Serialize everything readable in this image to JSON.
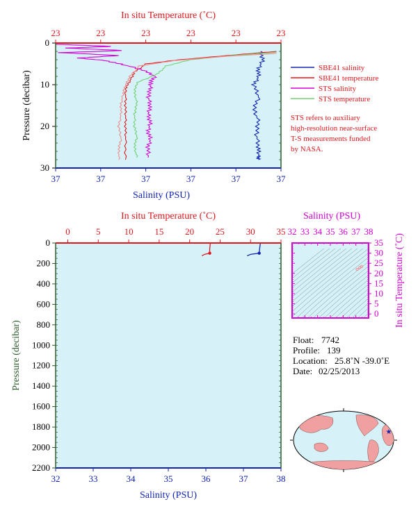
{
  "colors": {
    "red": "#e0161b",
    "blue": "#1023b0",
    "magenta": "#d400d4",
    "green": "#70d070",
    "pink": "#f08a8a",
    "plot_bg": "#d6f2f8",
    "axis_left": "#2a5a2a",
    "note": "#e0161b"
  },
  "chart_data": [
    {
      "type": "line",
      "id": "upper-profile",
      "title": "In situ Temperature (˚C)",
      "xlabel": "Salinity (PSU)",
      "ylabel": "Pressure (decibar)",
      "top_tick_labels": [
        "23",
        "23",
        "23",
        "23",
        "23",
        "23"
      ],
      "bottom_tick_labels": [
        "37",
        "37",
        "37",
        "37",
        "37",
        "37"
      ],
      "y_ticks": [
        "0",
        "10",
        "20",
        "30"
      ],
      "ylim": [
        0,
        30
      ],
      "y_inverted": true,
      "series": [
        {
          "name": "SBE41 salinity",
          "axis": "bottom",
          "color": "blue",
          "x": [
            0.91,
            0.92,
            0.9,
            0.9,
            0.88,
            0.9,
            0.88,
            0.9,
            0.89,
            0.9,
            0.9,
            0.9
          ],
          "y": [
            2,
            4,
            6,
            8,
            10,
            13,
            16,
            19,
            22,
            25,
            27,
            28
          ]
        },
        {
          "name": "SBE41 temperature",
          "axis": "top",
          "color": "red",
          "x": [
            0.98,
            0.76,
            0.55,
            0.4,
            0.35,
            0.33,
            0.31,
            0.31,
            0.31,
            0.31,
            0.31,
            0.31
          ],
          "y": [
            2,
            3,
            4,
            5,
            7,
            9,
            11,
            14,
            17,
            20,
            23,
            28
          ]
        },
        {
          "name": "STS salinity",
          "axis": "bottom",
          "color": "magenta",
          "x": [
            0.0,
            0.25,
            0.05,
            0.3,
            0.02,
            0.28,
            0.1,
            0.22,
            0.3,
            0.39,
            0.44,
            0.42,
            0.42,
            0.41,
            0.42,
            0.41,
            0.42,
            0.41,
            0.42,
            0.41,
            0.41
          ],
          "y": [
            0.3,
            0.8,
            1.2,
            1.8,
            2.3,
            3.0,
            3.6,
            4.2,
            5.2,
            6.5,
            8.0,
            9.5,
            11,
            13,
            15,
            17,
            19,
            21,
            23,
            25,
            27.5
          ]
        },
        {
          "name": "STS temperature",
          "axis": "top",
          "color": "green",
          "x": [
            0.98,
            0.78,
            0.6,
            0.49,
            0.45,
            0.36,
            0.35,
            0.36,
            0.35,
            0.35,
            0.36,
            0.35,
            0.36
          ],
          "y": [
            2.2,
            3,
            4,
            5.5,
            7.5,
            9.5,
            12,
            14.5,
            17,
            20,
            22.5,
            25,
            27.5
          ]
        },
        {
          "name": "",
          "axis": "top",
          "color": "pink",
          "x": [
            0.98,
            0.75,
            0.53,
            0.37,
            0.33,
            0.31,
            0.3,
            0.29,
            0.29,
            0.28,
            0.29,
            0.28,
            0.28
          ],
          "y": [
            2.5,
            3.2,
            4.2,
            5.5,
            8,
            10,
            12,
            14.5,
            17,
            20,
            23,
            25.5,
            28
          ]
        }
      ],
      "legend": [
        "SBE41 salinity",
        "SBE41 temperature",
        "STS salinity",
        "STS temperature"
      ],
      "legend_placement": "right"
    },
    {
      "type": "line",
      "id": "lower-profile",
      "title": "In situ Temperature (˚C)",
      "xlabel": "Salinity (PSU)",
      "ylabel": "Pressure (decibar)",
      "top_ticks": [
        0,
        5,
        10,
        15,
        20,
        25,
        30,
        35
      ],
      "bottom_ticks": [
        32,
        33,
        34,
        35,
        36,
        37,
        38
      ],
      "y_ticks": [
        0,
        200,
        400,
        600,
        800,
        1000,
        1200,
        1400,
        1600,
        1800,
        2000,
        2200
      ],
      "xlim_temperature": [
        -2,
        35
      ],
      "xlim_salinity": [
        32,
        38
      ],
      "ylim": [
        0,
        2200
      ],
      "y_inverted": true,
      "series": [
        {
          "name": "temperature",
          "axis": "top",
          "color": "red",
          "x": [
            23.4,
            23.3,
            23.3,
            22.5,
            22.0
          ],
          "y": [
            5,
            60,
            100,
            110,
            125
          ]
        },
        {
          "name": "salinity",
          "axis": "bottom",
          "color": "blue",
          "x": [
            37.45,
            37.43,
            37.42,
            37.2,
            37.1
          ],
          "y": [
            5,
            60,
            100,
            110,
            125
          ]
        }
      ]
    },
    {
      "type": "scatter",
      "id": "ts-diagram",
      "title": "Salinity (PSU)",
      "ylabel": "In situ Temperature (˚C)",
      "x_ticks": [
        32,
        33,
        34,
        35,
        36,
        37,
        38
      ],
      "y_ticks": [
        0,
        5,
        10,
        15,
        20,
        25,
        30,
        35
      ],
      "xlim": [
        32,
        38
      ],
      "ylim": [
        -2,
        35
      ],
      "series": [
        {
          "name": "",
          "color": "pink",
          "x": [
            37.1,
            37.3,
            37.45
          ],
          "y": [
            22.0,
            22.8,
            23.4
          ]
        }
      ]
    }
  ],
  "note": {
    "lines": [
      "STS refers to auxiliary",
      "high-resolution near-surface",
      "T-S measurements funded",
      "by NASA."
    ]
  },
  "info": {
    "float_label": "Float:",
    "float_value": "7742",
    "profile_label": "Profile:",
    "profile_value": "139",
    "location_label": "Location:",
    "location_value": "25.8˚N  -39.0˚E",
    "date_label": "Date:",
    "date_value": "02/25/2013"
  },
  "map": {
    "marker_lat": 25.8,
    "marker_lon": -39.0,
    "land_color": "#f0a0a0",
    "ocean_color": "#d6f2f8"
  }
}
